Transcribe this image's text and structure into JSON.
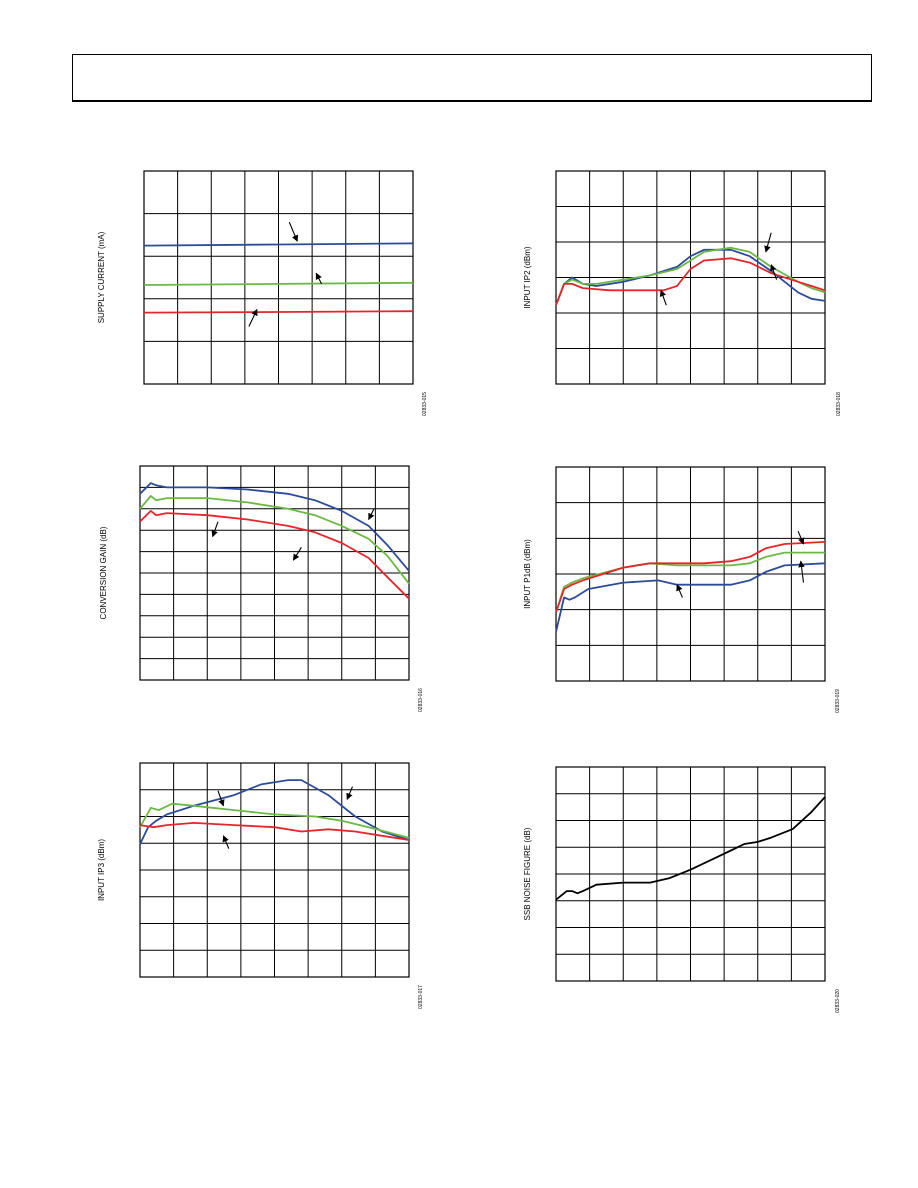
{
  "header": {
    "title": ""
  },
  "colors": {
    "blue": "#2c4b98",
    "green": "#6cb845",
    "red": "#e4262b",
    "black": "#000000",
    "grid": "#000000"
  },
  "chart_data": [
    {
      "type": "line",
      "ylabel": "SUPPLY CURRENT (mA)",
      "figure_code": "02833-015",
      "grid_cols": 8,
      "grid_rows": 5,
      "series": [
        {
          "color": "blue",
          "values": [
            [
              0,
              0.65
            ],
            [
              0.5,
              0.655
            ],
            [
              1,
              0.66
            ]
          ]
        },
        {
          "color": "green",
          "values": [
            [
              0,
              0.465
            ],
            [
              0.5,
              0.47
            ],
            [
              1,
              0.475
            ]
          ]
        },
        {
          "color": "red",
          "values": [
            [
              0,
              0.335
            ],
            [
              0.5,
              0.338
            ],
            [
              1,
              0.342
            ]
          ]
        }
      ],
      "arrows": [
        [
          0.39,
          0.27,
          0.42,
          0.35
        ],
        [
          0.66,
          0.47,
          0.64,
          0.52
        ],
        [
          0.54,
          0.76,
          0.57,
          0.67
        ]
      ]
    },
    {
      "type": "line",
      "ylabel": "INPUT IP2 (dBm)",
      "figure_code": "02833-018",
      "grid_cols": 8,
      "grid_rows": 6,
      "series": [
        {
          "color": "blue",
          "values": [
            [
              0,
              0.37
            ],
            [
              0.03,
              0.47
            ],
            [
              0.06,
              0.5
            ],
            [
              0.1,
              0.47
            ],
            [
              0.15,
              0.46
            ],
            [
              0.25,
              0.48
            ],
            [
              0.35,
              0.51
            ],
            [
              0.45,
              0.55
            ],
            [
              0.5,
              0.6
            ],
            [
              0.55,
              0.63
            ],
            [
              0.65,
              0.63
            ],
            [
              0.72,
              0.6
            ],
            [
              0.8,
              0.53
            ],
            [
              0.9,
              0.43
            ],
            [
              0.95,
              0.4
            ],
            [
              1,
              0.39
            ]
          ]
        },
        {
          "color": "green",
          "values": [
            [
              0,
              0.37
            ],
            [
              0.03,
              0.47
            ],
            [
              0.06,
              0.49
            ],
            [
              0.1,
              0.47
            ],
            [
              0.15,
              0.47
            ],
            [
              0.25,
              0.49
            ],
            [
              0.35,
              0.51
            ],
            [
              0.45,
              0.54
            ],
            [
              0.5,
              0.58
            ],
            [
              0.55,
              0.62
            ],
            [
              0.65,
              0.64
            ],
            [
              0.72,
              0.62
            ],
            [
              0.8,
              0.55
            ],
            [
              0.9,
              0.48
            ],
            [
              0.95,
              0.45
            ],
            [
              1,
              0.43
            ]
          ]
        },
        {
          "color": "red",
          "values": [
            [
              0,
              0.37
            ],
            [
              0.03,
              0.47
            ],
            [
              0.06,
              0.47
            ],
            [
              0.1,
              0.45
            ],
            [
              0.2,
              0.44
            ],
            [
              0.3,
              0.44
            ],
            [
              0.4,
              0.44
            ],
            [
              0.45,
              0.46
            ],
            [
              0.5,
              0.54
            ],
            [
              0.55,
              0.58
            ],
            [
              0.65,
              0.59
            ],
            [
              0.72,
              0.57
            ],
            [
              0.8,
              0.52
            ],
            [
              0.9,
              0.48
            ],
            [
              0.95,
              0.46
            ],
            [
              1,
              0.44
            ]
          ]
        }
      ],
      "arrows": [
        [
          0.8,
          0.71,
          0.78,
          0.62
        ],
        [
          0.82,
          0.49,
          0.8,
          0.56
        ],
        [
          0.41,
          0.37,
          0.39,
          0.44
        ]
      ]
    },
    {
      "type": "line",
      "ylabel": "CONVERSION GAIN (dB)",
      "figure_code": "02833-016",
      "grid_cols": 8,
      "grid_rows": 10,
      "series": [
        {
          "color": "blue",
          "values": [
            [
              0,
              0.87
            ],
            [
              0.04,
              0.92
            ],
            [
              0.06,
              0.91
            ],
            [
              0.1,
              0.9
            ],
            [
              0.25,
              0.9
            ],
            [
              0.4,
              0.89
            ],
            [
              0.55,
              0.87
            ],
            [
              0.65,
              0.84
            ],
            [
              0.75,
              0.79
            ],
            [
              0.85,
              0.72
            ],
            [
              0.92,
              0.63
            ],
            [
              1,
              0.51
            ]
          ]
        },
        {
          "color": "green",
          "values": [
            [
              0,
              0.8
            ],
            [
              0.04,
              0.86
            ],
            [
              0.06,
              0.84
            ],
            [
              0.1,
              0.85
            ],
            [
              0.25,
              0.85
            ],
            [
              0.4,
              0.83
            ],
            [
              0.55,
              0.8
            ],
            [
              0.65,
              0.77
            ],
            [
              0.75,
              0.72
            ],
            [
              0.85,
              0.66
            ],
            [
              0.92,
              0.58
            ],
            [
              1,
              0.45
            ]
          ]
        },
        {
          "color": "red",
          "values": [
            [
              0,
              0.74
            ],
            [
              0.04,
              0.79
            ],
            [
              0.06,
              0.77
            ],
            [
              0.1,
              0.78
            ],
            [
              0.25,
              0.77
            ],
            [
              0.4,
              0.75
            ],
            [
              0.55,
              0.72
            ],
            [
              0.65,
              0.69
            ],
            [
              0.75,
              0.64
            ],
            [
              0.85,
              0.57
            ],
            [
              0.92,
              0.48
            ],
            [
              1,
              0.38
            ]
          ]
        }
      ],
      "arrows": [
        [
          0.87,
          0.8,
          0.85,
          0.75
        ],
        [
          0.29,
          0.74,
          0.27,
          0.67
        ],
        [
          0.6,
          0.62,
          0.57,
          0.56
        ]
      ]
    },
    {
      "type": "line",
      "ylabel": "INPUT P1dB (dBm)",
      "figure_code": "02833-019",
      "grid_cols": 8,
      "grid_rows": 6,
      "series": [
        {
          "color": "blue",
          "values": [
            [
              0,
              0.23
            ],
            [
              0.03,
              0.39
            ],
            [
              0.05,
              0.38
            ],
            [
              0.07,
              0.39
            ],
            [
              0.12,
              0.43
            ],
            [
              0.25,
              0.46
            ],
            [
              0.38,
              0.47
            ],
            [
              0.45,
              0.45
            ],
            [
              0.5,
              0.45
            ],
            [
              0.55,
              0.45
            ],
            [
              0.65,
              0.45
            ],
            [
              0.72,
              0.47
            ],
            [
              0.78,
              0.51
            ],
            [
              0.85,
              0.54
            ],
            [
              1,
              0.55
            ]
          ]
        },
        {
          "color": "green",
          "values": [
            [
              0,
              0.32
            ],
            [
              0.03,
              0.44
            ],
            [
              0.06,
              0.46
            ],
            [
              0.1,
              0.48
            ],
            [
              0.25,
              0.53
            ],
            [
              0.35,
              0.55
            ],
            [
              0.45,
              0.54
            ],
            [
              0.55,
              0.54
            ],
            [
              0.65,
              0.54
            ],
            [
              0.72,
              0.55
            ],
            [
              0.78,
              0.58
            ],
            [
              0.85,
              0.6
            ],
            [
              1,
              0.6
            ]
          ]
        },
        {
          "color": "red",
          "values": [
            [
              0,
              0.32
            ],
            [
              0.03,
              0.43
            ],
            [
              0.06,
              0.45
            ],
            [
              0.1,
              0.47
            ],
            [
              0.25,
              0.53
            ],
            [
              0.35,
              0.55
            ],
            [
              0.45,
              0.55
            ],
            [
              0.55,
              0.55
            ],
            [
              0.65,
              0.56
            ],
            [
              0.72,
              0.58
            ],
            [
              0.78,
              0.62
            ],
            [
              0.85,
              0.64
            ],
            [
              1,
              0.65
            ]
          ]
        }
      ],
      "arrows": [
        [
          0.9,
          0.7,
          0.92,
          0.64
        ],
        [
          0.92,
          0.46,
          0.91,
          0.56
        ],
        [
          0.47,
          0.39,
          0.45,
          0.45
        ]
      ]
    },
    {
      "type": "line",
      "ylabel": "INPUT IP3 (dBm)",
      "figure_code": "02833-017",
      "grid_cols": 8,
      "grid_rows": 8,
      "series": [
        {
          "color": "blue",
          "values": [
            [
              0,
              0.62
            ],
            [
              0.03,
              0.7
            ],
            [
              0.06,
              0.73
            ],
            [
              0.1,
              0.76
            ],
            [
              0.2,
              0.8
            ],
            [
              0.35,
              0.85
            ],
            [
              0.45,
              0.9
            ],
            [
              0.55,
              0.92
            ],
            [
              0.6,
              0.92
            ],
            [
              0.7,
              0.85
            ],
            [
              0.8,
              0.75
            ],
            [
              0.9,
              0.68
            ],
            [
              1,
              0.64
            ]
          ]
        },
        {
          "color": "green",
          "values": [
            [
              0,
              0.7
            ],
            [
              0.04,
              0.79
            ],
            [
              0.07,
              0.78
            ],
            [
              0.12,
              0.81
            ],
            [
              0.2,
              0.8
            ],
            [
              0.35,
              0.78
            ],
            [
              0.5,
              0.76
            ],
            [
              0.65,
              0.75
            ],
            [
              0.75,
              0.73
            ],
            [
              0.85,
              0.7
            ],
            [
              1,
              0.65
            ]
          ]
        },
        {
          "color": "red",
          "values": [
            [
              0,
              0.71
            ],
            [
              0.05,
              0.7
            ],
            [
              0.1,
              0.71
            ],
            [
              0.2,
              0.72
            ],
            [
              0.35,
              0.71
            ],
            [
              0.5,
              0.7
            ],
            [
              0.6,
              0.68
            ],
            [
              0.7,
              0.69
            ],
            [
              0.8,
              0.68
            ],
            [
              0.9,
              0.66
            ],
            [
              1,
              0.64
            ]
          ]
        }
      ],
      "arrows": [
        [
          0.29,
          0.87,
          0.31,
          0.8
        ],
        [
          0.79,
          0.89,
          0.77,
          0.83
        ],
        [
          0.33,
          0.6,
          0.31,
          0.66
        ]
      ]
    },
    {
      "type": "line",
      "ylabel": "SSB NOISE FIGURE (dB)",
      "figure_code": "02833-020",
      "grid_cols": 8,
      "grid_rows": 8,
      "series": [
        {
          "color": "black",
          "values": [
            [
              0,
              0.38
            ],
            [
              0.04,
              0.42
            ],
            [
              0.06,
              0.42
            ],
            [
              0.08,
              0.41
            ],
            [
              0.1,
              0.42
            ],
            [
              0.15,
              0.45
            ],
            [
              0.25,
              0.46
            ],
            [
              0.35,
              0.46
            ],
            [
              0.42,
              0.48
            ],
            [
              0.5,
              0.52
            ],
            [
              0.6,
              0.58
            ],
            [
              0.65,
              0.61
            ],
            [
              0.7,
              0.64
            ],
            [
              0.75,
              0.65
            ],
            [
              0.8,
              0.67
            ],
            [
              0.88,
              0.71
            ],
            [
              0.95,
              0.79
            ],
            [
              1,
              0.86
            ]
          ]
        }
      ],
      "arrows": []
    }
  ]
}
